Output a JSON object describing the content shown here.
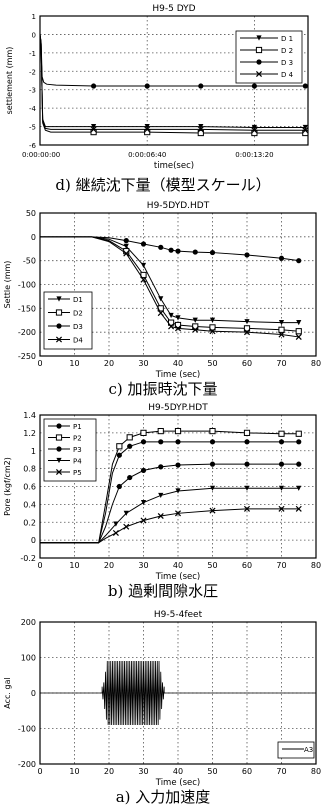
{
  "chart_data": [
    {
      "id": "d",
      "type": "line",
      "title": "H9-5  DYD",
      "xlabel": "time(sec)",
      "ylabel": "settlement (mm)",
      "caption": "d) 継続沈下量（模型スケール）",
      "xlim": [
        0,
        1000
      ],
      "ylim": [
        -6,
        1
      ],
      "xticks": [
        {
          "v": 0,
          "label": "0:00:00:00"
        },
        {
          "v": 400,
          "label": "0:00:06:40"
        },
        {
          "v": 800,
          "label": "0:00:13:20"
        }
      ],
      "yticks": [
        1,
        0,
        -1,
        -2,
        -3,
        -4,
        -5,
        -6
      ],
      "grid": "dotted",
      "legend_position": "top-right",
      "series": [
        {
          "name": "D 1",
          "marker": "triangle",
          "x": [
            0,
            4,
            10,
            20,
            40,
            80,
            200,
            400,
            600,
            800,
            990
          ],
          "y": [
            0,
            -0.5,
            -4.6,
            -5.0,
            -5.0,
            -5.0,
            -5.0,
            -5.0,
            -5.0,
            -5.05,
            -5.05
          ]
        },
        {
          "name": "D 2",
          "marker": "square",
          "x": [
            0,
            4,
            10,
            20,
            40,
            80,
            200,
            400,
            600,
            800,
            990
          ],
          "y": [
            0,
            -0.5,
            -4.8,
            -5.2,
            -5.3,
            -5.3,
            -5.3,
            -5.3,
            -5.35,
            -5.35,
            -5.35
          ]
        },
        {
          "name": "D 3",
          "marker": "circle",
          "x": [
            0,
            4,
            8,
            14,
            25,
            60,
            200,
            400,
            600,
            800,
            990
          ],
          "y": [
            0,
            -0.4,
            -2.3,
            -2.6,
            -2.7,
            -2.75,
            -2.8,
            -2.8,
            -2.8,
            -2.8,
            -2.8
          ]
        },
        {
          "name": "D 4",
          "marker": "x",
          "x": [
            0,
            4,
            10,
            20,
            40,
            80,
            200,
            400,
            600,
            800,
            990
          ],
          "y": [
            0,
            -0.5,
            -4.7,
            -5.1,
            -5.15,
            -5.15,
            -5.15,
            -5.15,
            -5.15,
            -5.2,
            -5.2
          ]
        }
      ]
    },
    {
      "id": "c",
      "type": "line",
      "title": "H9-5DYD.HDT",
      "xlabel": "Time (sec)",
      "ylabel": "Settle (mm)",
      "caption": "c) 加振時沈下量",
      "xlim": [
        0,
        80
      ],
      "ylim": [
        -250,
        50
      ],
      "xticks": [
        0,
        10,
        20,
        30,
        40,
        50,
        60,
        70,
        80
      ],
      "yticks": [
        50,
        0,
        -50,
        -100,
        -150,
        -200,
        -250
      ],
      "grid": "dotted",
      "legend_position": "bottom-left",
      "series": [
        {
          "name": "D1",
          "marker": "triangle",
          "x": [
            0,
            15,
            20,
            25,
            30,
            35,
            38,
            40,
            45,
            50,
            60,
            70,
            75
          ],
          "y": [
            0,
            0,
            -5,
            -20,
            -60,
            -130,
            -165,
            -170,
            -175,
            -175,
            -178,
            -180,
            -180
          ]
        },
        {
          "name": "D2",
          "marker": "square",
          "x": [
            0,
            15,
            20,
            25,
            30,
            35,
            38,
            40,
            45,
            50,
            60,
            70,
            75
          ],
          "y": [
            0,
            0,
            -8,
            -30,
            -80,
            -150,
            -180,
            -185,
            -188,
            -190,
            -192,
            -195,
            -198
          ]
        },
        {
          "name": "D3",
          "marker": "circle",
          "x": [
            0,
            15,
            20,
            25,
            30,
            35,
            38,
            40,
            45,
            50,
            60,
            70,
            75
          ],
          "y": [
            0,
            0,
            -2,
            -8,
            -15,
            -22,
            -28,
            -30,
            -32,
            -33,
            -38,
            -45,
            -50
          ]
        },
        {
          "name": "D4",
          "marker": "x",
          "x": [
            0,
            15,
            20,
            25,
            30,
            35,
            38,
            40,
            45,
            50,
            60,
            70,
            75
          ],
          "y": [
            0,
            0,
            -10,
            -35,
            -90,
            -160,
            -188,
            -192,
            -195,
            -198,
            -200,
            -205,
            -210
          ]
        }
      ]
    },
    {
      "id": "b",
      "type": "line",
      "title": "H9-5DYP.HDT",
      "xlabel": "Time (sec)",
      "ylabel": "Pore (kgf/cm2)",
      "caption": "b) 過剰間隙水圧",
      "xlim": [
        0,
        80
      ],
      "ylim": [
        -0.2,
        1.4
      ],
      "xticks": [
        0,
        10,
        20,
        30,
        40,
        50,
        60,
        70,
        80
      ],
      "yticks": [
        1.4,
        1.2,
        1,
        0.8,
        0.6,
        0.4,
        0.2,
        0,
        -0.2
      ],
      "grid": "dotted",
      "legend_position": "top-left",
      "series": [
        {
          "name": "P1",
          "marker": "circle",
          "x": [
            0,
            17,
            19,
            21,
            23,
            26,
            30,
            35,
            40,
            50,
            60,
            70,
            75
          ],
          "y": [
            -0.03,
            -0.03,
            0.3,
            0.75,
            0.95,
            1.05,
            1.1,
            1.1,
            1.1,
            1.1,
            1.1,
            1.1,
            1.1
          ]
        },
        {
          "name": "P2",
          "marker": "square",
          "x": [
            0,
            17,
            19,
            21,
            23,
            26,
            30,
            35,
            40,
            50,
            60,
            70,
            75
          ],
          "y": [
            -0.03,
            -0.03,
            0.4,
            0.85,
            1.05,
            1.15,
            1.2,
            1.22,
            1.22,
            1.22,
            1.2,
            1.19,
            1.19
          ]
        },
        {
          "name": "P3",
          "marker": "circle",
          "x": [
            0,
            17,
            19,
            21,
            23,
            26,
            30,
            35,
            40,
            50,
            60,
            70,
            75
          ],
          "y": [
            -0.03,
            -0.03,
            0.15,
            0.4,
            0.6,
            0.7,
            0.78,
            0.82,
            0.84,
            0.85,
            0.85,
            0.85,
            0.85
          ]
        },
        {
          "name": "P4",
          "marker": "triangle",
          "x": [
            0,
            17,
            19,
            22,
            25,
            30,
            35,
            40,
            50,
            60,
            70,
            75
          ],
          "y": [
            -0.03,
            -0.03,
            0.05,
            0.18,
            0.3,
            0.42,
            0.5,
            0.55,
            0.58,
            0.58,
            0.58,
            0.58
          ]
        },
        {
          "name": "P5",
          "marker": "x",
          "x": [
            0,
            17,
            19,
            22,
            25,
            30,
            35,
            40,
            50,
            60,
            70,
            75
          ],
          "y": [
            -0.03,
            -0.03,
            0.02,
            0.08,
            0.15,
            0.22,
            0.27,
            0.3,
            0.33,
            0.35,
            0.35,
            0.35
          ]
        }
      ]
    },
    {
      "id": "a",
      "type": "line",
      "title": "H9-5-4feet",
      "xlabel": "Time (sec)",
      "ylabel": "Acc. gal",
      "caption": "a) 入力加速度",
      "xlim": [
        0,
        80
      ],
      "ylim": [
        -200,
        200
      ],
      "xticks": [
        0,
        10,
        20,
        30,
        40,
        50,
        60,
        70,
        80
      ],
      "yticks": [
        200,
        100,
        0,
        -100,
        -200
      ],
      "grid": "dotted",
      "legend_position": "bottom-right",
      "series": [
        {
          "name": "A3",
          "waveform": {
            "t_start": 18,
            "t_end": 36,
            "amplitude": 90,
            "cycles_per_sec": 2
          }
        }
      ]
    }
  ]
}
